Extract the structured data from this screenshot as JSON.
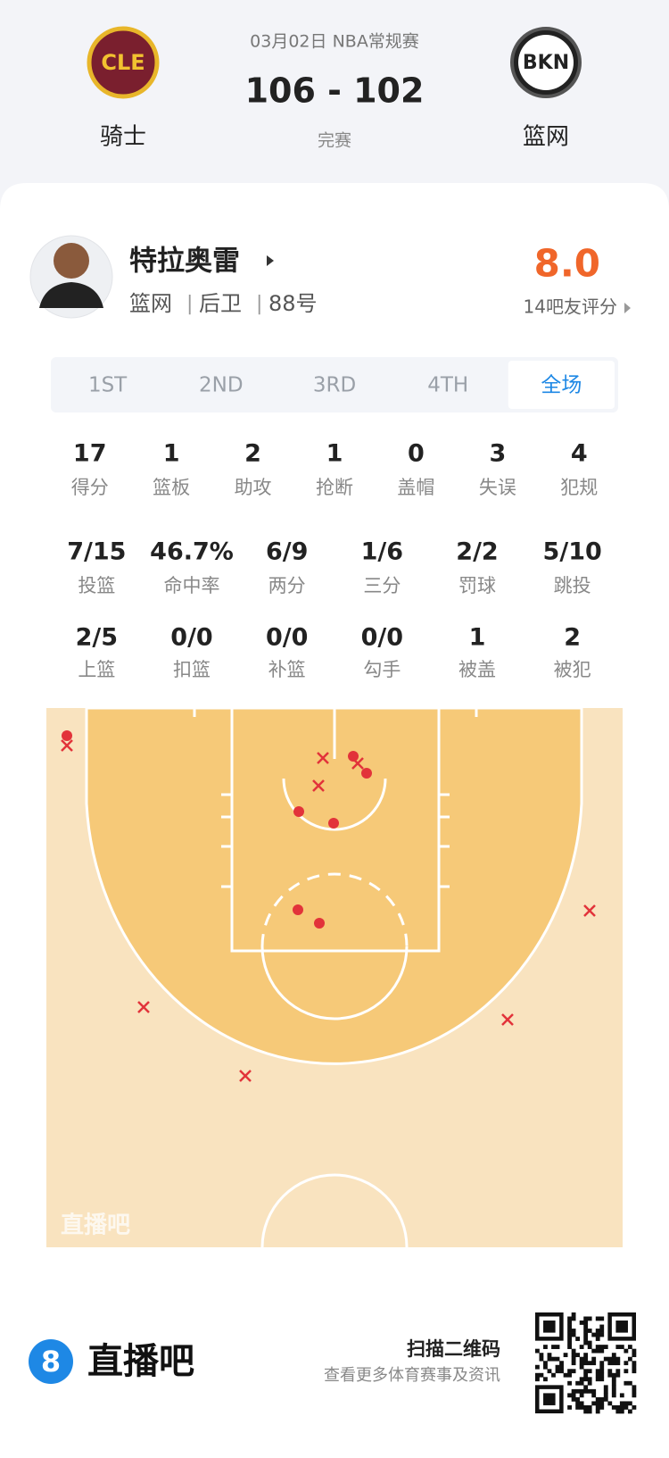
{
  "header": {
    "date": "03月02日 NBA常规赛",
    "score": "106 - 102",
    "status": "完赛",
    "home": {
      "logo": "CLE",
      "name": "骑士"
    },
    "away": {
      "logo": "BKN",
      "name": "篮网"
    }
  },
  "player": {
    "name": "特拉奥雷",
    "team": "篮网",
    "position": "后卫",
    "number": "88号",
    "rating": "8.0",
    "rating_note": "14吧友评分"
  },
  "tabs": {
    "items": [
      "1ST",
      "2ND",
      "3RD",
      "4TH",
      "全场"
    ],
    "active": 4
  },
  "stats": [
    [
      {
        "value": "17",
        "label": "得分"
      },
      {
        "value": "1",
        "label": "篮板"
      },
      {
        "value": "2",
        "label": "助攻"
      },
      {
        "value": "1",
        "label": "抢断"
      },
      {
        "value": "0",
        "label": "盖帽"
      },
      {
        "value": "3",
        "label": "失误"
      },
      {
        "value": "4",
        "label": "犯规"
      }
    ],
    [
      {
        "value": "7/15",
        "label": "投篮"
      },
      {
        "value": "46.7%",
        "label": "命中率"
      },
      {
        "value": "6/9",
        "label": "两分"
      },
      {
        "value": "1/6",
        "label": "三分"
      },
      {
        "value": "2/2",
        "label": "罚球"
      },
      {
        "value": "5/10",
        "label": "跳投"
      }
    ],
    [
      {
        "value": "2/5",
        "label": "上篮"
      },
      {
        "value": "0/0",
        "label": "扣篮"
      },
      {
        "value": "0/0",
        "label": "补篮"
      },
      {
        "value": "0/0",
        "label": "勾手"
      },
      {
        "value": "1",
        "label": "被盖"
      },
      {
        "value": "2",
        "label": "被犯"
      }
    ]
  ],
  "court": {
    "watermark": "直播吧"
  },
  "footer": {
    "logo": "8",
    "brand": "直播吧",
    "scan": "扫描二维码",
    "note": "查看更多体育赛事及资讯"
  }
}
